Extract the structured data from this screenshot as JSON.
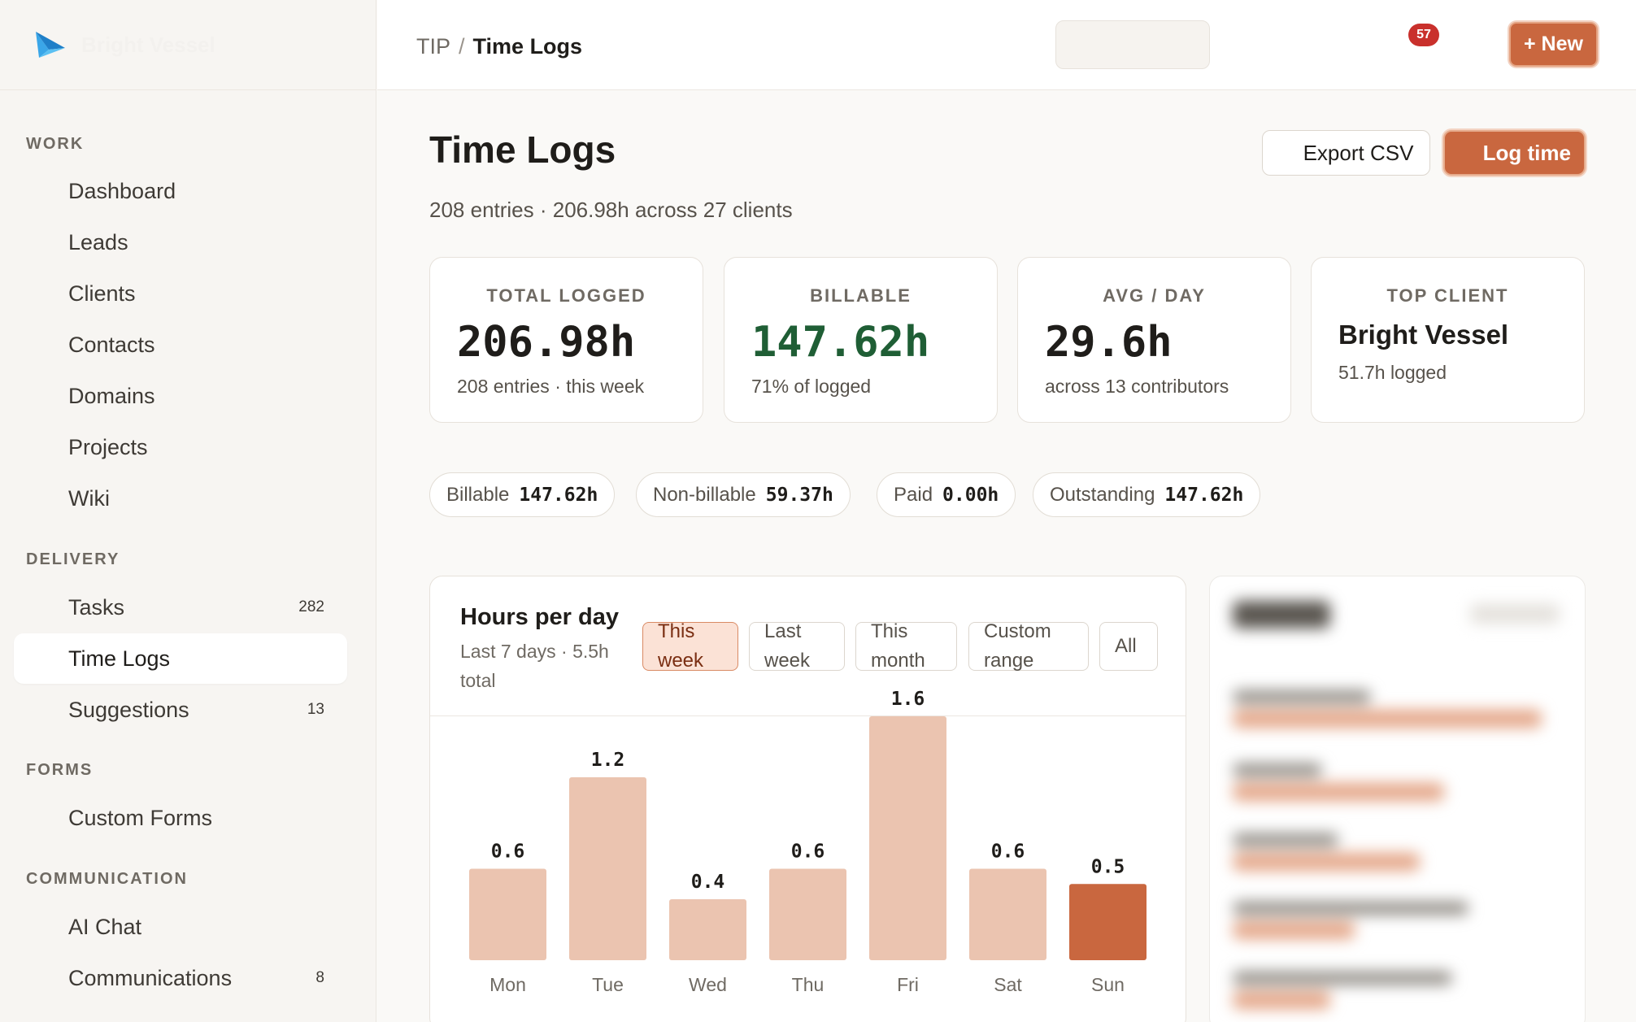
{
  "brand": {
    "logo_icon": "paper-plane-icon",
    "name": "Bright Vessel"
  },
  "nav": {
    "sections": [
      {
        "label": "WORK"
      },
      {
        "label": "DELIVERY"
      },
      {
        "label": "FORMS"
      },
      {
        "label": "COMMUNICATION"
      }
    ],
    "items": [
      {
        "label": "Dashboard"
      },
      {
        "label": "Leads"
      },
      {
        "label": "Clients"
      },
      {
        "label": "Contacts"
      },
      {
        "label": "Domains"
      },
      {
        "label": "Projects"
      },
      {
        "label": "Wiki"
      },
      {
        "label": "Tasks",
        "count": "282"
      },
      {
        "label": "Time Logs",
        "active": true
      },
      {
        "label": "Suggestions",
        "count": "13"
      },
      {
        "label": "Custom Forms"
      },
      {
        "label": "AI Chat"
      },
      {
        "label": "Communications",
        "count": "8"
      }
    ]
  },
  "topbar": {
    "breadcrumb_root": "TIP",
    "breadcrumb_sep": "/",
    "breadcrumb_current": "Time Logs",
    "notification_count": "57",
    "new_label": "+ New"
  },
  "main": {
    "title": "Time Logs",
    "subtitle": "208 entries · 206.98h across 27 clients",
    "export_label": "Export CSV",
    "log_label": "Log time"
  },
  "stats": [
    {
      "label": "TOTAL LOGGED",
      "value": "206.98h",
      "note": "208 entries · this week"
    },
    {
      "label": "BILLABLE",
      "value": "147.62h",
      "note": "71% of logged"
    },
    {
      "label": "AVG / DAY",
      "value": "29.6h",
      "note": "across 13 contributors"
    },
    {
      "label": "TOP CLIENT",
      "value": "Bright Vessel",
      "note": "51.7h logged"
    }
  ],
  "pills": [
    {
      "label": "Billable",
      "value": "147.62h"
    },
    {
      "label": "Non-billable",
      "value": "59.37h"
    },
    {
      "label": "Paid",
      "value": "0.00h"
    },
    {
      "label": "Outstanding",
      "value": "147.62h"
    }
  ],
  "chart": {
    "title": "Hours per day",
    "subtitle": "Last 7 days · 5.5h total",
    "tabs": [
      "This week",
      "Last week",
      "This month",
      "Custom range",
      "All"
    ],
    "active_tab": "This week"
  },
  "colors": {
    "accent": "#c9673f",
    "bar": "#ebc4b0",
    "highlight_bar": "#c9673f"
  },
  "chart_data": {
    "type": "bar",
    "categories": [
      "Mon",
      "Tue",
      "Wed",
      "Thu",
      "Fri",
      "Sat",
      "Sun"
    ],
    "values": [
      0.6,
      1.2,
      0.4,
      0.6,
      1.6,
      0.6,
      0.5
    ],
    "labels": [
      "0.6",
      "1.2",
      "0.4",
      "0.6",
      "1.6",
      "0.6",
      "0.5"
    ],
    "highlight_index": 6,
    "ylim": [
      0,
      1.6
    ]
  }
}
